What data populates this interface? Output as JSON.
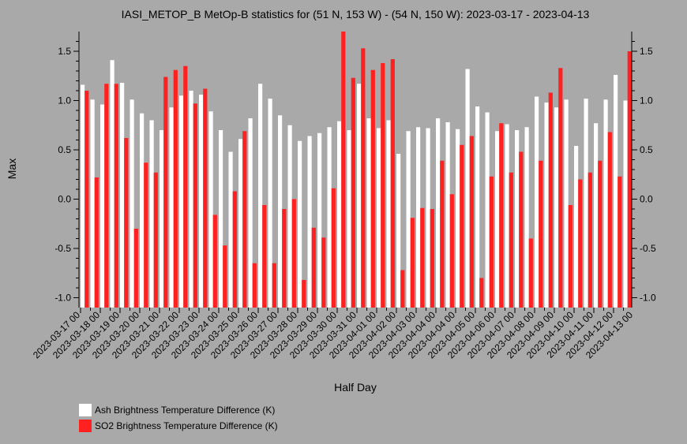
{
  "chart_data": {
    "type": "bar",
    "title": "IASI_METOP_B MetOp-B statistics for (51 N, 153 W) - (54 N, 150 W): 2023-03-17 - 2023-04-13",
    "xlabel": "Half Day",
    "ylabel": "Max",
    "ylim": [
      -1.1,
      1.7
    ],
    "yticks": [
      "-1.0",
      "-0.5",
      "0.0",
      "0.5",
      "1.0",
      "1.5"
    ],
    "xtick_labels": [
      "2023-03-17 00",
      "2023-03-18 00",
      "2023-03-19 00",
      "2023-03-20 00",
      "2023-03-21 00",
      "2023-03-22 00",
      "2023-03-23 00",
      "2023-03-24 00",
      "2023-03-25 00",
      "2023-03-26 00",
      "2023-03-27 00",
      "2023-03-28 00",
      "2023-03-29 00",
      "2023-03-30 00",
      "2023-03-31 00",
      "2023-04-01 00",
      "2023-04-02 00",
      "2023-04-03 00",
      "2023-04-04 00",
      "2023-04-04 00",
      "2023-04-05 00",
      "2023-04-06 00",
      "2023-04-07 00",
      "2023-04-08 00",
      "2023-04-09 00",
      "2023-04-10 00",
      "2023-04-11 00",
      "2023-04-12 00",
      "2023-04-13 00"
    ],
    "legend_position": "bottom-left",
    "grid": false,
    "series": [
      {
        "name": "Ash Brightness Temperature Difference (K)",
        "color": "#ffffff",
        "values": [
          1.16,
          1.01,
          0.96,
          1.41,
          1.18,
          1.01,
          0.87,
          0.8,
          0.7,
          0.93,
          1.05,
          1.1,
          1.06,
          0.89,
          0.7,
          0.48,
          0.61,
          0.82,
          1.17,
          1.02,
          0.85,
          0.75,
          0.59,
          0.64,
          0.67,
          0.73,
          0.79,
          0.7,
          1.17,
          0.82,
          0.72,
          0.8,
          0.46,
          0.69,
          0.73,
          0.72,
          0.82,
          0.78,
          0.71,
          1.32,
          0.94,
          0.88,
          0.69,
          0.76,
          0.7,
          0.73,
          1.04,
          0.98,
          0.93,
          1.01,
          0.54,
          1.02,
          0.77,
          1.01,
          1.26,
          1.0
        ]
      },
      {
        "name": "SO2 Brightness Temperature Difference (K)",
        "color": "#ff2020",
        "values": [
          1.1,
          0.22,
          1.17,
          1.17,
          0.62,
          -0.3,
          0.37,
          0.27,
          1.24,
          1.31,
          1.35,
          0.97,
          1.12,
          -0.16,
          -0.47,
          0.08,
          0.69,
          -0.65,
          -0.06,
          -0.65,
          -0.1,
          0.0,
          -0.82,
          -0.29,
          -0.39,
          0.11,
          1.7,
          1.23,
          1.53,
          1.31,
          1.38,
          1.42,
          -0.72,
          -0.19,
          -0.09,
          -0.1,
          0.39,
          0.05,
          0.55,
          0.64,
          -0.8,
          0.23,
          0.77,
          0.27,
          0.48,
          -0.4,
          0.39,
          1.08,
          1.33,
          -0.06,
          0.2,
          0.27,
          0.39,
          0.68,
          0.23,
          1.5
        ]
      }
    ]
  }
}
